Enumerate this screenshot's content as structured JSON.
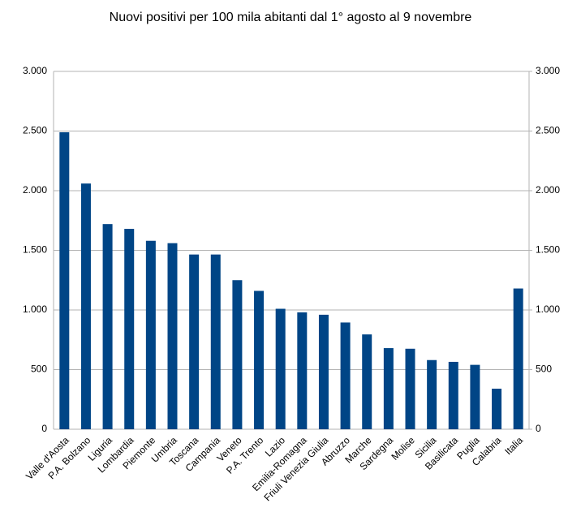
{
  "chart_data": {
    "type": "bar",
    "title": "Nuovi positivi per 100 mila abitanti dal 1° agosto al 9 novembre",
    "categories": [
      "Valle d'Aosta",
      "P.A. Bolzano",
      "Liguria",
      "Lombardia",
      "Piemonte",
      "Umbria",
      "Toscana",
      "Campania",
      "Veneto",
      "P.A. Trento",
      "Lazio",
      "Emilia-Romagna",
      "Friuli Venezia Giulia",
      "Abruzzo",
      "Marche",
      "Sardegna",
      "Molise",
      "Sicilia",
      "Basilicata",
      "Puglia",
      "Calabria",
      "Italia"
    ],
    "values": [
      2490,
      2060,
      1720,
      1680,
      1580,
      1560,
      1465,
      1465,
      1250,
      1160,
      1010,
      980,
      960,
      895,
      795,
      680,
      675,
      580,
      565,
      540,
      340,
      1180
    ],
    "color": "#004586",
    "ylim": [
      0,
      3000
    ],
    "yticks": [
      0,
      500,
      {
        "value": 1000,
        "label": "1.000"
      },
      {
        "value": 1500,
        "label": "1.500"
      },
      {
        "value": 2000,
        "label": "2.000"
      },
      {
        "value": 2500,
        "label": "2.500"
      },
      {
        "value": 3000,
        "label": "3.000"
      }
    ],
    "y2lim": [
      0,
      3000
    ],
    "y2ticks": [
      0,
      500,
      {
        "value": 1000,
        "label": "1.000"
      },
      {
        "value": 1500,
        "label": "1.500"
      },
      {
        "value": 2000,
        "label": "2.000"
      },
      {
        "value": 2500,
        "label": "2.500"
      },
      {
        "value": 3000,
        "label": "3.000"
      }
    ],
    "grid": true
  }
}
